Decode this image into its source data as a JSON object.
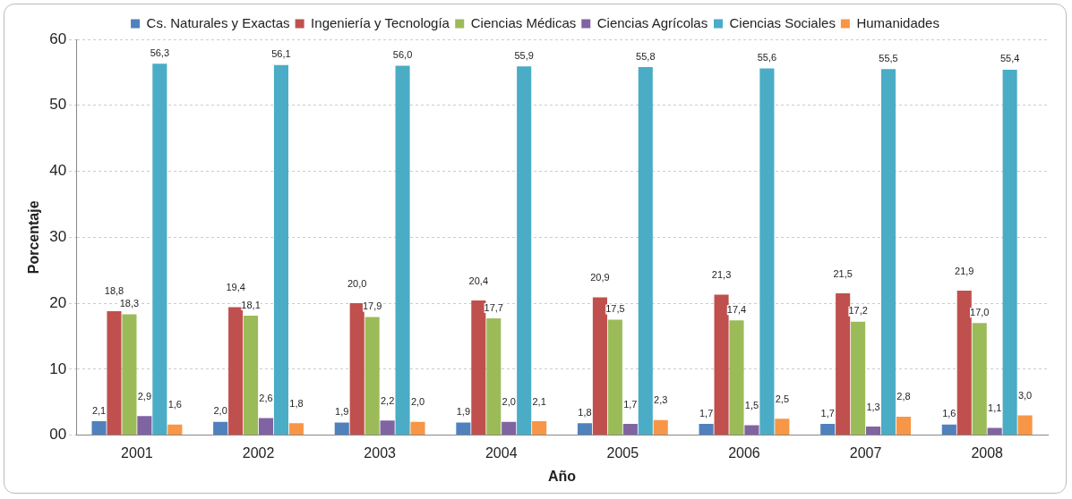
{
  "chart_data": {
    "type": "bar",
    "xlabel": "Año",
    "ylabel": "Porcentaje",
    "categories": [
      "2001",
      "2002",
      "2003",
      "2004",
      "2005",
      "2006",
      "2007",
      "2008"
    ],
    "ylim": [
      0,
      60
    ],
    "yticks": [
      {
        "value": 0,
        "label": "00"
      },
      10,
      20,
      30,
      40,
      50,
      60
    ],
    "grid": "y",
    "legend": "top",
    "series": [
      {
        "name": "Cs. Naturales y Exactas",
        "color": "#4f81bd",
        "values": [
          2.1,
          2.0,
          1.9,
          1.9,
          1.8,
          1.7,
          1.7,
          1.6
        ],
        "value_labels": [
          "2,1",
          "2,0",
          "1,9",
          "1,9",
          "1,8",
          "1,7",
          "1,7",
          "1,6"
        ]
      },
      {
        "name": "Ingeniería y Tecnología",
        "color": "#c0504d",
        "values": [
          18.8,
          19.4,
          20.0,
          20.4,
          20.9,
          21.3,
          21.5,
          21.9
        ],
        "value_labels": [
          "18,8",
          "19,4",
          "20,0",
          "20,4",
          "20,9",
          "21,3",
          "21,5",
          "21,9"
        ]
      },
      {
        "name": "Ciencias Médicas",
        "color": "#9bbb59",
        "values": [
          18.3,
          18.1,
          17.9,
          17.7,
          17.5,
          17.4,
          17.2,
          17.0
        ],
        "value_labels": [
          "18,3",
          "18,1",
          "17,9",
          "17,7",
          "17,5",
          "17,4",
          "17,2",
          "17,0"
        ]
      },
      {
        "name": "Ciencias Agrícolas",
        "color": "#8064a2",
        "values": [
          2.9,
          2.6,
          2.2,
          2.0,
          1.7,
          1.5,
          1.3,
          1.1
        ],
        "value_labels": [
          "2,9",
          "2,6",
          "2,2",
          "2,0",
          "1,7",
          "1,5",
          "1,3",
          "1,1"
        ]
      },
      {
        "name": "Ciencias Sociales",
        "color": "#4bacc6",
        "values": [
          56.3,
          56.1,
          56.0,
          55.9,
          55.8,
          55.6,
          55.5,
          55.4
        ],
        "value_labels": [
          "56,3",
          "56,1",
          "56,0",
          "55,9",
          "55,8",
          "55,6",
          "55,5",
          "55,4"
        ]
      },
      {
        "name": "Humanidades",
        "color": "#f79646",
        "values": [
          1.6,
          1.8,
          2.0,
          2.1,
          2.3,
          2.5,
          2.8,
          3.0
        ],
        "value_labels": [
          "1,6",
          "1,8",
          "2,0",
          "2,1",
          "2,3",
          "2,5",
          "2,8",
          "3,0"
        ]
      }
    ]
  }
}
